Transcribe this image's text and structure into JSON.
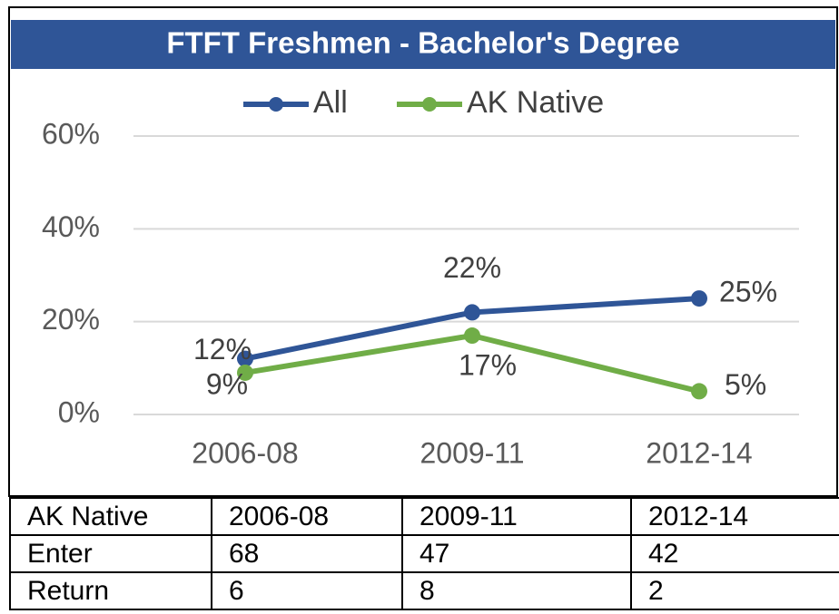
{
  "chart_data": {
    "type": "line",
    "title": "FTFT Freshmen - Bachelor's Degree",
    "categories": [
      "2006-08",
      "2009-11",
      "2012-14"
    ],
    "series": [
      {
        "name": "All",
        "color": "#2f5597",
        "values": [
          12,
          22,
          25
        ],
        "value_labels": [
          "12%",
          "22%",
          "25%"
        ]
      },
      {
        "name": "AK Native",
        "color": "#70ad47",
        "values": [
          9,
          17,
          5
        ],
        "value_labels": [
          "9%",
          "17%",
          "5%"
        ]
      }
    ],
    "ylim": [
      0,
      60
    ],
    "yticks": [
      {
        "value": 0,
        "label": "0%"
      },
      {
        "value": 20,
        "label": "20%"
      },
      {
        "value": 40,
        "label": "40%"
      },
      {
        "value": 60,
        "label": "60%"
      }
    ],
    "grid": true,
    "legend": "top"
  },
  "table": {
    "header": [
      "AK Native",
      "2006-08",
      "2009-11",
      "2012-14"
    ],
    "rows": [
      [
        "Enter",
        68,
        47,
        42
      ],
      [
        "Return",
        6,
        8,
        2
      ]
    ]
  }
}
